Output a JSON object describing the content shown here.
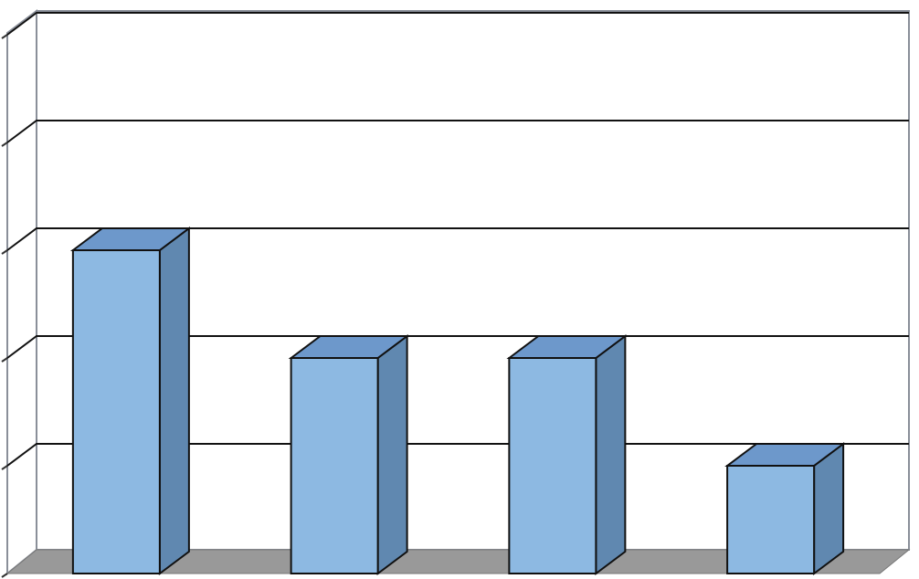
{
  "chart_data": {
    "type": "bar3d",
    "categories": [
      null,
      null,
      null,
      null
    ],
    "values": [
      3,
      2,
      2,
      1
    ],
    "color": "#8db9e2",
    "ylim": [
      0,
      5
    ],
    "yticks": [
      0,
      1,
      2,
      3,
      4,
      5
    ],
    "grid": true
  }
}
